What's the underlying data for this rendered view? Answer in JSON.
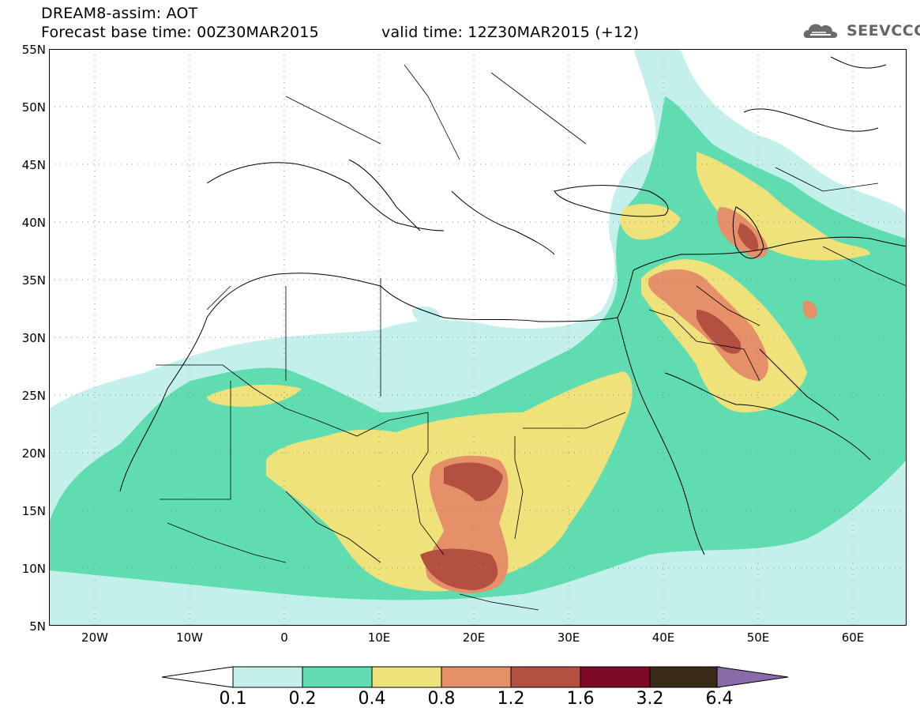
{
  "header": {
    "title_line1": "DREAM8-assim: AOT",
    "title_line2": "Forecast base time: 00Z30MAR2015",
    "valid_time": "valid time: 12Z30MAR2015 (+12)",
    "logo_text": "SEEVCCC"
  },
  "map": {
    "projection": "lat-lon",
    "lat_range": [
      5,
      55
    ],
    "lon_range": [
      -25,
      65
    ],
    "lat_labels": [
      "55N",
      "50N",
      "45N",
      "40N",
      "35N",
      "30N",
      "25N",
      "20N",
      "15N",
      "10N",
      "5N"
    ],
    "lon_labels": [
      "20W",
      "10W",
      "0",
      "10E",
      "20E",
      "30E",
      "40E",
      "50E",
      "60E"
    ],
    "gridlines": "dotted"
  },
  "legend": {
    "levels": [
      "0.1",
      "0.2",
      "0.4",
      "0.8",
      "1.2",
      "1.6",
      "3.2",
      "6.4"
    ],
    "colors": [
      "#c4f0ec",
      "#5fdcb0",
      "#f0e27a",
      "#e59068",
      "#b45040",
      "#7c0a28",
      "#3a2a18",
      "#8a6aa8"
    ],
    "extend": "both"
  }
}
